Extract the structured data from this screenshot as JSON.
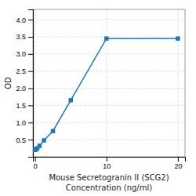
{
  "chart_data": {
    "type": "line",
    "x_label": [
      "Mouse Secretogranin II (SCG2)",
      "Concentration (ng/ml)"
    ],
    "y_label": "OD",
    "x": [
      0,
      0.156,
      0.313,
      0.625,
      1.25,
      2.5,
      5,
      10,
      20
    ],
    "values": [
      0.2,
      0.22,
      0.25,
      0.32,
      0.48,
      0.75,
      1.65,
      3.45,
      3.45
    ],
    "marker": "square",
    "xlim": [
      -0.3,
      21
    ],
    "ylim": [
      0.0,
      4.3
    ],
    "xticks": [
      0,
      10,
      20
    ],
    "yticks": [
      0.5,
      {
        "value": 1.0,
        "label": "1.0"
      },
      1.5,
      {
        "value": 2.0,
        "label": "2.0"
      },
      2.5,
      {
        "value": 3.0,
        "label": "3.0"
      },
      3.5,
      {
        "value": 4.0,
        "label": "4.0"
      }
    ],
    "grid": true
  }
}
